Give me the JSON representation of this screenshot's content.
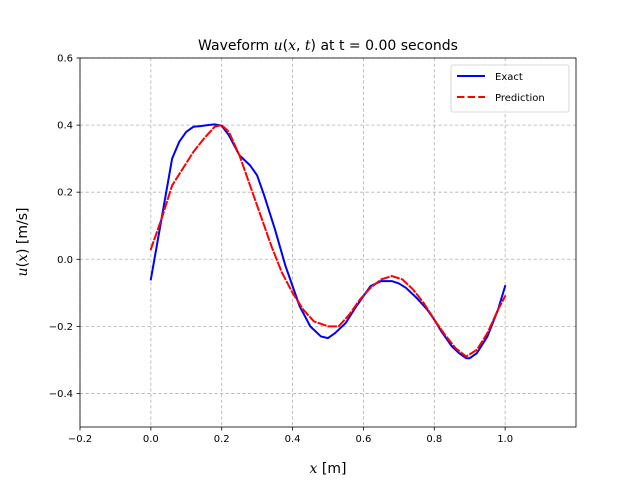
{
  "chart_data": {
    "type": "line",
    "title_parts": [
      "Waveform ",
      "u",
      "(",
      "x",
      ", ",
      "t",
      ")",
      " at t = 0.00 seconds"
    ],
    "xlabel_parts": [
      "x",
      " [m]"
    ],
    "ylabel_parts": [
      "u",
      "(",
      "x",
      ")",
      " [m/s]"
    ],
    "xlim": [
      -0.2,
      1.2
    ],
    "ylim": [
      -0.5,
      0.6
    ],
    "xticks": [
      -0.2,
      0.0,
      0.2,
      0.4,
      0.6,
      0.8,
      1.0
    ],
    "xtick_labels": [
      "−0.2",
      "0.0",
      "0.2",
      "0.4",
      "0.6",
      "0.8",
      "1.0"
    ],
    "yticks": [
      -0.4,
      -0.2,
      0.0,
      0.2,
      0.4,
      0.6
    ],
    "ytick_labels": [
      "−0.4",
      "−0.2",
      "0.0",
      "0.2",
      "0.4",
      "0.6"
    ],
    "grid": true,
    "legend_position": "top-right",
    "series": [
      {
        "name": "Exact",
        "color": "#0000ff",
        "style": "solid",
        "x": [
          0.0,
          0.03,
          0.06,
          0.08,
          0.1,
          0.12,
          0.14,
          0.16,
          0.18,
          0.2,
          0.22,
          0.25,
          0.28,
          0.3,
          0.32,
          0.35,
          0.38,
          0.4,
          0.42,
          0.45,
          0.48,
          0.5,
          0.52,
          0.55,
          0.58,
          0.6,
          0.62,
          0.65,
          0.68,
          0.7,
          0.72,
          0.75,
          0.78,
          0.8,
          0.82,
          0.85,
          0.87,
          0.89,
          0.9,
          0.92,
          0.95,
          0.98,
          1.0
        ],
        "y": [
          -0.06,
          0.12,
          0.3,
          0.35,
          0.38,
          0.395,
          0.397,
          0.4,
          0.402,
          0.398,
          0.37,
          0.31,
          0.28,
          0.25,
          0.19,
          0.09,
          -0.02,
          -0.08,
          -0.14,
          -0.2,
          -0.23,
          -0.235,
          -0.22,
          -0.19,
          -0.14,
          -0.11,
          -0.08,
          -0.065,
          -0.065,
          -0.072,
          -0.085,
          -0.115,
          -0.15,
          -0.18,
          -0.215,
          -0.26,
          -0.28,
          -0.295,
          -0.295,
          -0.28,
          -0.23,
          -0.15,
          -0.08
        ]
      },
      {
        "name": "Prediction",
        "color": "#ff0000",
        "style": "dashed",
        "x": [
          0.0,
          0.03,
          0.06,
          0.09,
          0.12,
          0.15,
          0.18,
          0.2,
          0.22,
          0.25,
          0.28,
          0.31,
          0.34,
          0.37,
          0.4,
          0.43,
          0.46,
          0.5,
          0.53,
          0.56,
          0.59,
          0.62,
          0.65,
          0.68,
          0.71,
          0.74,
          0.77,
          0.8,
          0.83,
          0.86,
          0.89,
          0.92,
          0.95,
          0.98,
          1.0
        ],
        "y": [
          0.03,
          0.12,
          0.22,
          0.27,
          0.32,
          0.36,
          0.395,
          0.4,
          0.38,
          0.31,
          0.22,
          0.13,
          0.04,
          -0.04,
          -0.1,
          -0.15,
          -0.185,
          -0.2,
          -0.2,
          -0.165,
          -0.12,
          -0.085,
          -0.06,
          -0.05,
          -0.06,
          -0.09,
          -0.13,
          -0.18,
          -0.225,
          -0.265,
          -0.29,
          -0.27,
          -0.22,
          -0.15,
          -0.11
        ]
      }
    ]
  }
}
